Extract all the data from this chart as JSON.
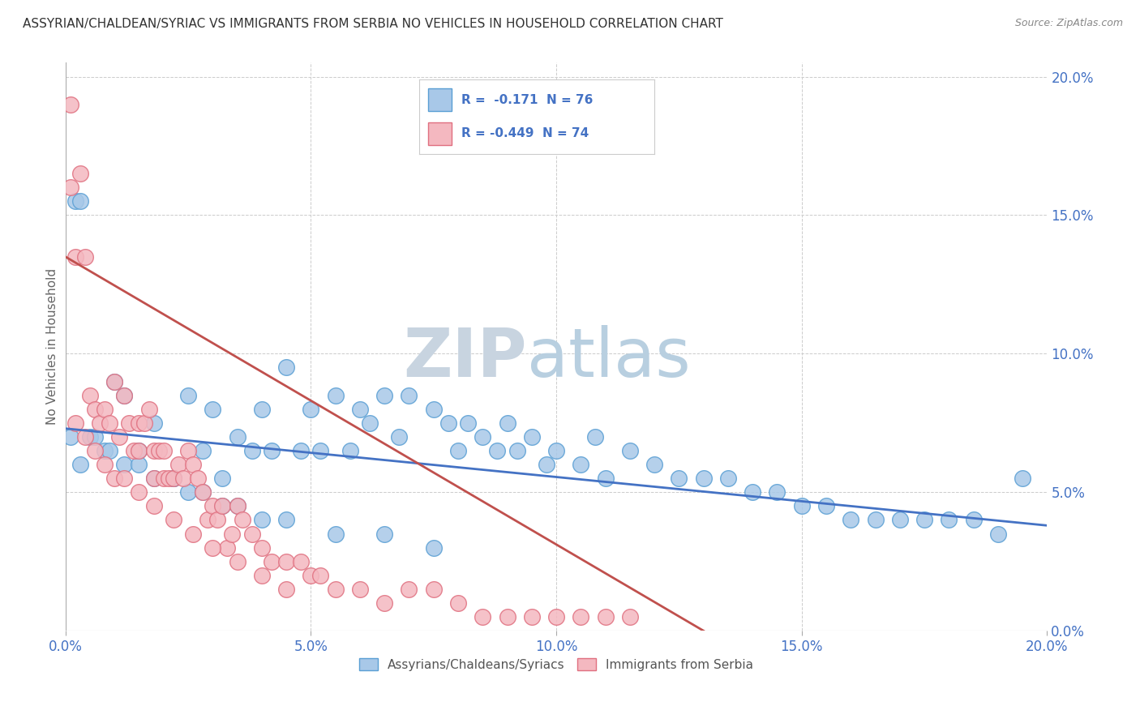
{
  "title": "ASSYRIAN/CHALDEAN/SYRIAC VS IMMIGRANTS FROM SERBIA NO VEHICLES IN HOUSEHOLD CORRELATION CHART",
  "source": "Source: ZipAtlas.com",
  "ylabel": "No Vehicles in Household",
  "legend_blue_r": "R =  -0.171",
  "legend_blue_n": "N = 76",
  "legend_pink_r": "R = -0.449",
  "legend_pink_n": "N = 74",
  "legend_blue_label": "Assyrians/Chaldeans/Syriacs",
  "legend_pink_label": "Immigrants from Serbia",
  "watermark_zip": "ZIP",
  "watermark_atlas": "atlas",
  "blue_color": "#a8c8e8",
  "blue_edge_color": "#5a9fd4",
  "pink_color": "#f4b8c0",
  "pink_edge_color": "#e07080",
  "blue_line_color": "#4472c4",
  "pink_line_color": "#c0504d",
  "blue_scatter_x": [
    0.001,
    0.002,
    0.003,
    0.005,
    0.008,
    0.01,
    0.012,
    0.015,
    0.018,
    0.022,
    0.025,
    0.028,
    0.03,
    0.032,
    0.035,
    0.038,
    0.04,
    0.042,
    0.045,
    0.048,
    0.05,
    0.052,
    0.055,
    0.058,
    0.06,
    0.062,
    0.065,
    0.068,
    0.07,
    0.075,
    0.078,
    0.08,
    0.082,
    0.085,
    0.088,
    0.09,
    0.092,
    0.095,
    0.098,
    0.1,
    0.105,
    0.108,
    0.11,
    0.115,
    0.12,
    0.125,
    0.13,
    0.135,
    0.14,
    0.145,
    0.15,
    0.155,
    0.16,
    0.165,
    0.17,
    0.175,
    0.18,
    0.185,
    0.19,
    0.195,
    0.003,
    0.006,
    0.009,
    0.012,
    0.015,
    0.018,
    0.022,
    0.025,
    0.028,
    0.032,
    0.035,
    0.04,
    0.045,
    0.055,
    0.065,
    0.075
  ],
  "blue_scatter_y": [
    0.07,
    0.155,
    0.155,
    0.07,
    0.065,
    0.09,
    0.085,
    0.065,
    0.075,
    0.055,
    0.085,
    0.065,
    0.08,
    0.055,
    0.07,
    0.065,
    0.08,
    0.065,
    0.095,
    0.065,
    0.08,
    0.065,
    0.085,
    0.065,
    0.08,
    0.075,
    0.085,
    0.07,
    0.085,
    0.08,
    0.075,
    0.065,
    0.075,
    0.07,
    0.065,
    0.075,
    0.065,
    0.07,
    0.06,
    0.065,
    0.06,
    0.07,
    0.055,
    0.065,
    0.06,
    0.055,
    0.055,
    0.055,
    0.05,
    0.05,
    0.045,
    0.045,
    0.04,
    0.04,
    0.04,
    0.04,
    0.04,
    0.04,
    0.035,
    0.055,
    0.06,
    0.07,
    0.065,
    0.06,
    0.06,
    0.055,
    0.055,
    0.05,
    0.05,
    0.045,
    0.045,
    0.04,
    0.04,
    0.035,
    0.035,
    0.03
  ],
  "pink_scatter_x": [
    0.001,
    0.001,
    0.002,
    0.003,
    0.004,
    0.005,
    0.006,
    0.007,
    0.008,
    0.009,
    0.01,
    0.011,
    0.012,
    0.013,
    0.014,
    0.015,
    0.015,
    0.016,
    0.017,
    0.018,
    0.018,
    0.019,
    0.02,
    0.02,
    0.021,
    0.022,
    0.023,
    0.024,
    0.025,
    0.026,
    0.027,
    0.028,
    0.029,
    0.03,
    0.031,
    0.032,
    0.033,
    0.034,
    0.035,
    0.036,
    0.038,
    0.04,
    0.042,
    0.045,
    0.048,
    0.05,
    0.052,
    0.055,
    0.06,
    0.065,
    0.07,
    0.075,
    0.08,
    0.085,
    0.09,
    0.095,
    0.1,
    0.105,
    0.11,
    0.115,
    0.002,
    0.004,
    0.006,
    0.008,
    0.01,
    0.012,
    0.015,
    0.018,
    0.022,
    0.026,
    0.03,
    0.035,
    0.04,
    0.045
  ],
  "pink_scatter_y": [
    0.19,
    0.16,
    0.135,
    0.165,
    0.135,
    0.085,
    0.08,
    0.075,
    0.08,
    0.075,
    0.09,
    0.07,
    0.085,
    0.075,
    0.065,
    0.065,
    0.075,
    0.075,
    0.08,
    0.055,
    0.065,
    0.065,
    0.065,
    0.055,
    0.055,
    0.055,
    0.06,
    0.055,
    0.065,
    0.06,
    0.055,
    0.05,
    0.04,
    0.045,
    0.04,
    0.045,
    0.03,
    0.035,
    0.045,
    0.04,
    0.035,
    0.03,
    0.025,
    0.025,
    0.025,
    0.02,
    0.02,
    0.015,
    0.015,
    0.01,
    0.015,
    0.015,
    0.01,
    0.005,
    0.005,
    0.005,
    0.005,
    0.005,
    0.005,
    0.005,
    0.075,
    0.07,
    0.065,
    0.06,
    0.055,
    0.055,
    0.05,
    0.045,
    0.04,
    0.035,
    0.03,
    0.025,
    0.02,
    0.015
  ],
  "blue_trend_x": [
    0.0,
    0.2
  ],
  "blue_trend_y": [
    0.073,
    0.038
  ],
  "pink_trend_x": [
    0.0,
    0.13
  ],
  "pink_trend_y": [
    0.135,
    0.0
  ],
  "xmin": 0.0,
  "xmax": 0.2,
  "ymin": 0.0,
  "ymax": 0.205,
  "xticks": [
    0.0,
    0.05,
    0.1,
    0.15,
    0.2
  ],
  "yticks": [
    0.0,
    0.05,
    0.1,
    0.15,
    0.2
  ],
  "background_color": "#ffffff",
  "grid_color": "#cccccc",
  "title_fontsize": 11,
  "watermark_fontsize": 60,
  "watermark_zip_color": "#c8d4e0",
  "watermark_atlas_color": "#b8cfe0"
}
